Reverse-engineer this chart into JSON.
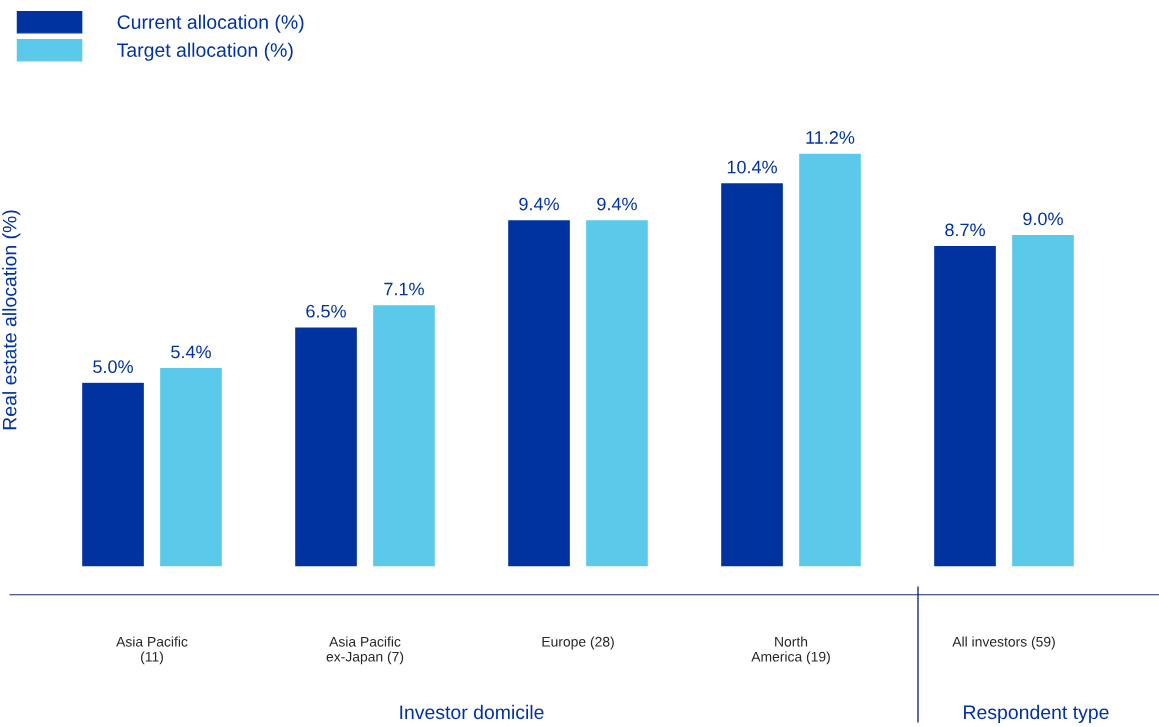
{
  "chart_data": {
    "type": "bar",
    "ylabel": "Real estate allocation (%)",
    "categories": [
      "Asia Pacific\n(11)",
      "Asia Pacific\nex-Japan (7)",
      "Europe (28)",
      "North\nAmerica (19)",
      "All investors (59)"
    ],
    "series": [
      {
        "name": "Current allocation (%)",
        "color": "#0033a0",
        "values": [
          5.0,
          6.5,
          9.4,
          10.4,
          8.7
        ],
        "value_labels": [
          "5.0%",
          "6.5%",
          "9.4%",
          "10.4%",
          "8.7%"
        ]
      },
      {
        "name": "Target allocation (%)",
        "color": "#5bc9e9",
        "values": [
          5.4,
          7.1,
          9.4,
          11.2,
          9.0
        ],
        "value_labels": [
          "5.4%",
          "7.1%",
          "9.4%",
          "11.2%",
          "9.0%"
        ]
      }
    ],
    "annotations": [
      "Investor domicile",
      "Respondent type"
    ],
    "legend": "top left",
    "grid": false
  }
}
